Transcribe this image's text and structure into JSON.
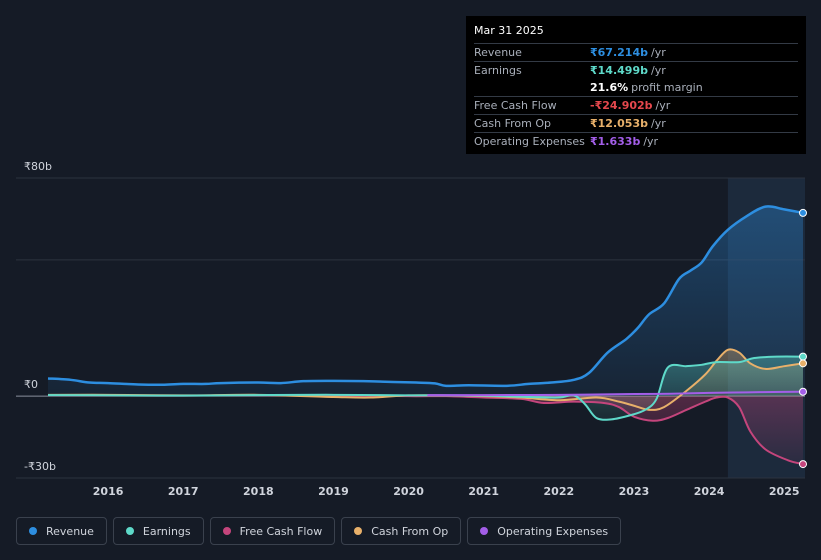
{
  "tooltip": {
    "date": "Mar 31 2025",
    "rows": [
      {
        "label": "Revenue",
        "value": "₹67.214b",
        "unit": "/yr",
        "color": "#2d8ee0"
      },
      {
        "label": "Earnings",
        "value": "₹14.499b",
        "unit": "/yr",
        "color": "#5ed9c9"
      },
      {
        "label": "",
        "value": "21.6%",
        "unit": "profit margin",
        "color": "#ffffff"
      },
      {
        "label": "Free Cash Flow",
        "value": "-₹24.902b",
        "unit": "/yr",
        "color": "#e5484d"
      },
      {
        "label": "Cash From Op",
        "value": "₹12.053b",
        "unit": "/yr",
        "color": "#e8b06a"
      },
      {
        "label": "Operating Expenses",
        "value": "₹1.633b",
        "unit": "/yr",
        "color": "#a35ee8"
      }
    ]
  },
  "legend": [
    {
      "label": "Revenue",
      "color": "#2d8ee0"
    },
    {
      "label": "Earnings",
      "color": "#5ed9c9"
    },
    {
      "label": "Free Cash Flow",
      "color": "#c4457c"
    },
    {
      "label": "Cash From Op",
      "color": "#e8b06a"
    },
    {
      "label": "Operating Expenses",
      "color": "#a35ee8"
    }
  ],
  "chart_data": {
    "type": "area",
    "y_tick_labels": [
      "₹80b",
      "₹0",
      "-₹30b"
    ],
    "y_ticks": [
      80,
      0,
      -30
    ],
    "ylim": [
      -30,
      80
    ],
    "xlim": [
      2015.2,
      2025.25
    ],
    "x_tick_labels": [
      "2016",
      "2017",
      "2018",
      "2019",
      "2020",
      "2021",
      "2022",
      "2023",
      "2024",
      "2025"
    ],
    "x_ticks": [
      2016,
      2017,
      2018,
      2019,
      2020,
      2021,
      2022,
      2023,
      2024,
      2025
    ],
    "highlight_start": 2024.25,
    "grid": true,
    "series": [
      {
        "name": "Revenue",
        "color": "#2d8ee0",
        "points": [
          [
            2015.2,
            6.5
          ],
          [
            2015.5,
            6
          ],
          [
            2015.75,
            5
          ],
          [
            2016,
            4.8
          ],
          [
            2016.4,
            4.3
          ],
          [
            2016.75,
            4.2
          ],
          [
            2017,
            4.5
          ],
          [
            2017.3,
            4.5
          ],
          [
            2017.5,
            4.8
          ],
          [
            2018,
            5
          ],
          [
            2018.3,
            4.8
          ],
          [
            2018.6,
            5.5
          ],
          [
            2019,
            5.6
          ],
          [
            2019.4,
            5.5
          ],
          [
            2019.8,
            5.2
          ],
          [
            2020.1,
            5
          ],
          [
            2020.35,
            4.7
          ],
          [
            2020.5,
            3.8
          ],
          [
            2020.8,
            4
          ],
          [
            2021.3,
            3.8
          ],
          [
            2021.6,
            4.5
          ],
          [
            2021.9,
            5
          ],
          [
            2022.2,
            6
          ],
          [
            2022.4,
            8.5
          ],
          [
            2022.65,
            16
          ],
          [
            2022.9,
            21
          ],
          [
            2023.05,
            25
          ],
          [
            2023.2,
            30
          ],
          [
            2023.4,
            34
          ],
          [
            2023.6,
            43
          ],
          [
            2023.75,
            46
          ],
          [
            2023.9,
            49
          ],
          [
            2024.05,
            55
          ],
          [
            2024.25,
            61
          ],
          [
            2024.5,
            66
          ],
          [
            2024.75,
            69.5
          ],
          [
            2025,
            68.5
          ],
          [
            2025.25,
            67.2
          ]
        ]
      },
      {
        "name": "Earnings",
        "color": "#5ed9c9",
        "points": [
          [
            2015.2,
            0.4
          ],
          [
            2016,
            0.3
          ],
          [
            2017,
            0.2
          ],
          [
            2018,
            0.4
          ],
          [
            2019,
            0.5
          ],
          [
            2020,
            0.3
          ],
          [
            2020.5,
            0.3
          ],
          [
            2021,
            0.2
          ],
          [
            2021.6,
            -0.3
          ],
          [
            2022,
            -0.5
          ],
          [
            2022.2,
            0.3
          ],
          [
            2022.35,
            -3
          ],
          [
            2022.5,
            -8
          ],
          [
            2022.7,
            -8.5
          ],
          [
            2022.95,
            -7
          ],
          [
            2023.15,
            -5
          ],
          [
            2023.3,
            -1
          ],
          [
            2023.45,
            10.5
          ],
          [
            2023.7,
            11
          ],
          [
            2023.9,
            11.5
          ],
          [
            2024.1,
            12.5
          ],
          [
            2024.4,
            12.5
          ],
          [
            2024.6,
            14
          ],
          [
            2024.9,
            14.5
          ],
          [
            2025.25,
            14.5
          ]
        ]
      },
      {
        "name": "Free Cash Flow",
        "color": "#c4457c",
        "points": [
          [
            2015.2,
            0.4
          ],
          [
            2016,
            0.3
          ],
          [
            2017,
            0.2
          ],
          [
            2018,
            0.4
          ],
          [
            2019,
            0.3
          ],
          [
            2020,
            0
          ],
          [
            2020.5,
            0
          ],
          [
            2021,
            -0.5
          ],
          [
            2021.5,
            -1
          ],
          [
            2021.8,
            -2.5
          ],
          [
            2022.2,
            -2
          ],
          [
            2022.6,
            -2.5
          ],
          [
            2022.8,
            -4
          ],
          [
            2023,
            -7.5
          ],
          [
            2023.25,
            -9
          ],
          [
            2023.45,
            -8
          ],
          [
            2023.7,
            -5
          ],
          [
            2023.95,
            -2
          ],
          [
            2024.1,
            -0.5
          ],
          [
            2024.25,
            -0.5
          ],
          [
            2024.4,
            -4
          ],
          [
            2024.55,
            -13
          ],
          [
            2024.75,
            -19.5
          ],
          [
            2025.05,
            -23.5
          ],
          [
            2025.25,
            -24.9
          ]
        ]
      },
      {
        "name": "Cash From Op",
        "color": "#e8b06a",
        "points": [
          [
            2015.2,
            0.5
          ],
          [
            2016,
            0.5
          ],
          [
            2017,
            0.3
          ],
          [
            2018,
            0.5
          ],
          [
            2019,
            -0.3
          ],
          [
            2019.5,
            -0.5
          ],
          [
            2020,
            0.3
          ],
          [
            2020.5,
            0.3
          ],
          [
            2021,
            0
          ],
          [
            2021.5,
            -0.5
          ],
          [
            2022,
            -1.5
          ],
          [
            2022.5,
            -0.5
          ],
          [
            2022.8,
            -2
          ],
          [
            2023,
            -3.5
          ],
          [
            2023.2,
            -5
          ],
          [
            2023.4,
            -4
          ],
          [
            2023.7,
            2
          ],
          [
            2023.95,
            8
          ],
          [
            2024.1,
            13
          ],
          [
            2024.25,
            17
          ],
          [
            2024.4,
            16
          ],
          [
            2024.55,
            12
          ],
          [
            2024.75,
            10
          ],
          [
            2025,
            11
          ],
          [
            2025.25,
            12.05
          ]
        ]
      },
      {
        "name": "Operating Expenses",
        "color": "#a35ee8",
        "points": [
          [
            2020.25,
            0.4
          ],
          [
            2021,
            0.4
          ],
          [
            2022,
            0.5
          ],
          [
            2023,
            0.8
          ],
          [
            2023.5,
            0.9
          ],
          [
            2024,
            1.2
          ],
          [
            2024.5,
            1.4
          ],
          [
            2025,
            1.6
          ],
          [
            2025.25,
            1.633
          ]
        ]
      }
    ]
  }
}
